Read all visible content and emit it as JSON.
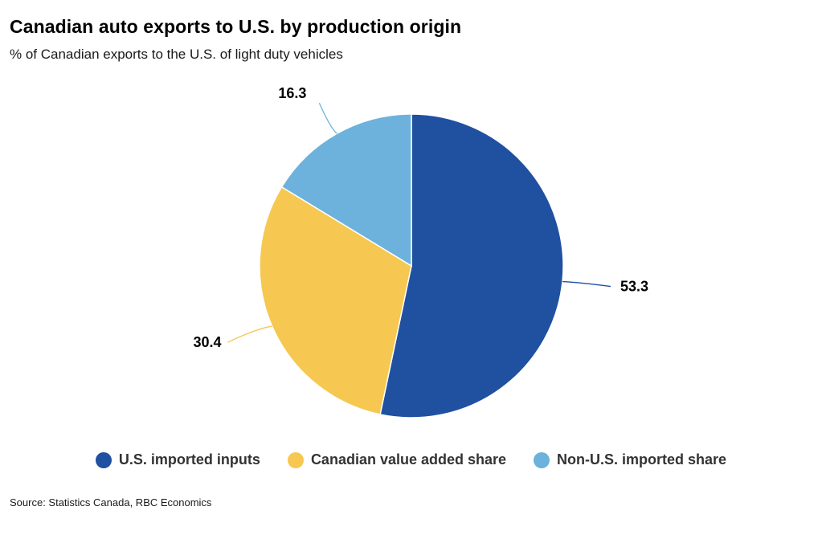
{
  "header": {
    "title": "Canadian auto exports to U.S. by production origin",
    "subtitle": "% of Canadian exports to the U.S. of light duty vehicles"
  },
  "chart_data": {
    "type": "pie",
    "slices": [
      {
        "label": "U.S. imported inputs",
        "value": 53.3,
        "value_label": "53.3",
        "color": "#2050a0"
      },
      {
        "label": "Canadian value added share",
        "value": 30.4,
        "value_label": "30.4",
        "color": "#f6c851"
      },
      {
        "label": "Non-U.S. imported share",
        "value": 16.3,
        "value_label": "16.3",
        "color": "#6cb2dc"
      }
    ],
    "start": "12 o'clock",
    "direction": "clockwise",
    "legend_position": "bottom"
  },
  "legend": {
    "items": [
      {
        "label": "U.S. imported inputs",
        "color": "#2050a0"
      },
      {
        "label": "Canadian value added share",
        "color": "#f6c851"
      },
      {
        "label": "Non-U.S. imported share",
        "color": "#6cb2dc"
      }
    ]
  },
  "footer": {
    "source": "Source: Statistics Canada, RBC Economics"
  }
}
